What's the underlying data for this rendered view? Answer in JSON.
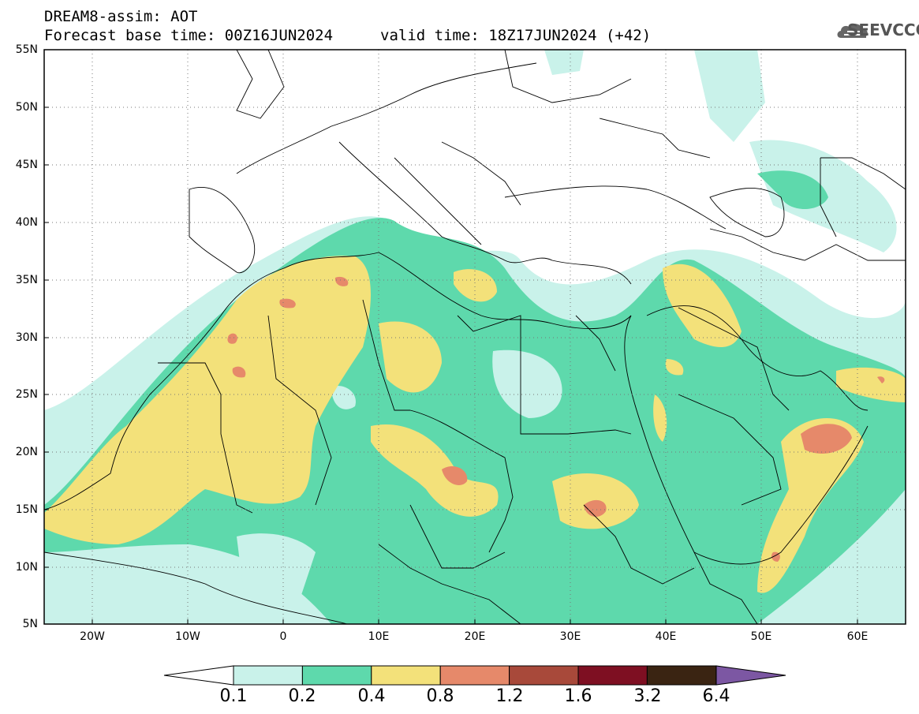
{
  "header": {
    "model_line": "DREAM8-assim: AOT",
    "base_time_line": "Forecast base time: 00Z16JUN2024",
    "valid_time_line": "valid time: 18Z17JUN2024 (+42)"
  },
  "logo": {
    "text": "SEEVCCC",
    "icon": "cloud-logo-icon"
  },
  "map": {
    "lat_labels": [
      "55N",
      "50N",
      "45N",
      "40N",
      "35N",
      "30N",
      "25N",
      "20N",
      "15N",
      "10N",
      "5N"
    ],
    "lon_labels": [
      "20W",
      "10W",
      "0",
      "10E",
      "20E",
      "30E",
      "40E",
      "50E",
      "60E"
    ],
    "grid": "dotted",
    "extent": {
      "lon_min": -25,
      "lon_max": 65,
      "lat_min": 5,
      "lat_max": 55
    }
  },
  "colorbar": {
    "levels": [
      "0.1",
      "0.2",
      "0.4",
      "0.8",
      "1.2",
      "1.6",
      "3.2",
      "6.4"
    ],
    "colors": [
      "#c9f2ea",
      "#5ed9ac",
      "#f3e17a",
      "#e6896a",
      "#a8493a",
      "#7e0f22",
      "#3a2412",
      "#7c57a3"
    ],
    "under_color": "#ffffff",
    "over_color": "#7c57a3"
  }
}
